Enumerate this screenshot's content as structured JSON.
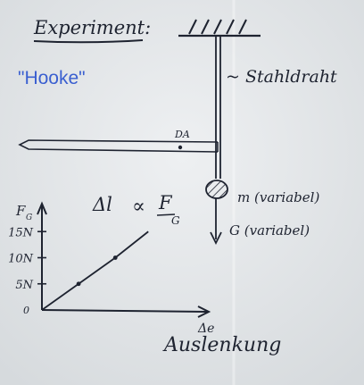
{
  "board": {
    "heading": "Experiment:",
    "subtitle": "\"Hooke\"",
    "wire_label": "~ Stahldraht",
    "pointer_label": "DA",
    "mass_label": "m (variabel)",
    "force_label": "G (variabel)",
    "relation": {
      "left": "Δl",
      "prop": "∝",
      "numerator": "F",
      "subscript": "G"
    }
  },
  "chart_data": {
    "type": "line",
    "ylabel": "F",
    "ylabel_subscript": "G",
    "xlabel": "Δe",
    "caption": "Auslenkung",
    "origin_label": "0",
    "y_ticks": [
      {
        "label": "5N",
        "value": 5
      },
      {
        "label": "10N",
        "value": 10
      },
      {
        "label": "15N",
        "value": 15
      }
    ],
    "points": [
      {
        "x": 0,
        "y": 0
      },
      {
        "x": 1,
        "y": 5
      },
      {
        "x": 2,
        "y": 10
      },
      {
        "x": 2.9,
        "y": 15
      }
    ],
    "marked_points": [
      {
        "x": 1,
        "y": 5
      },
      {
        "x": 2,
        "y": 10
      }
    ],
    "xlim": [
      0,
      4.5
    ],
    "ylim": [
      0,
      20
    ],
    "colors": {
      "ink": "#1e2330",
      "accent": "#3a5fd0"
    }
  }
}
